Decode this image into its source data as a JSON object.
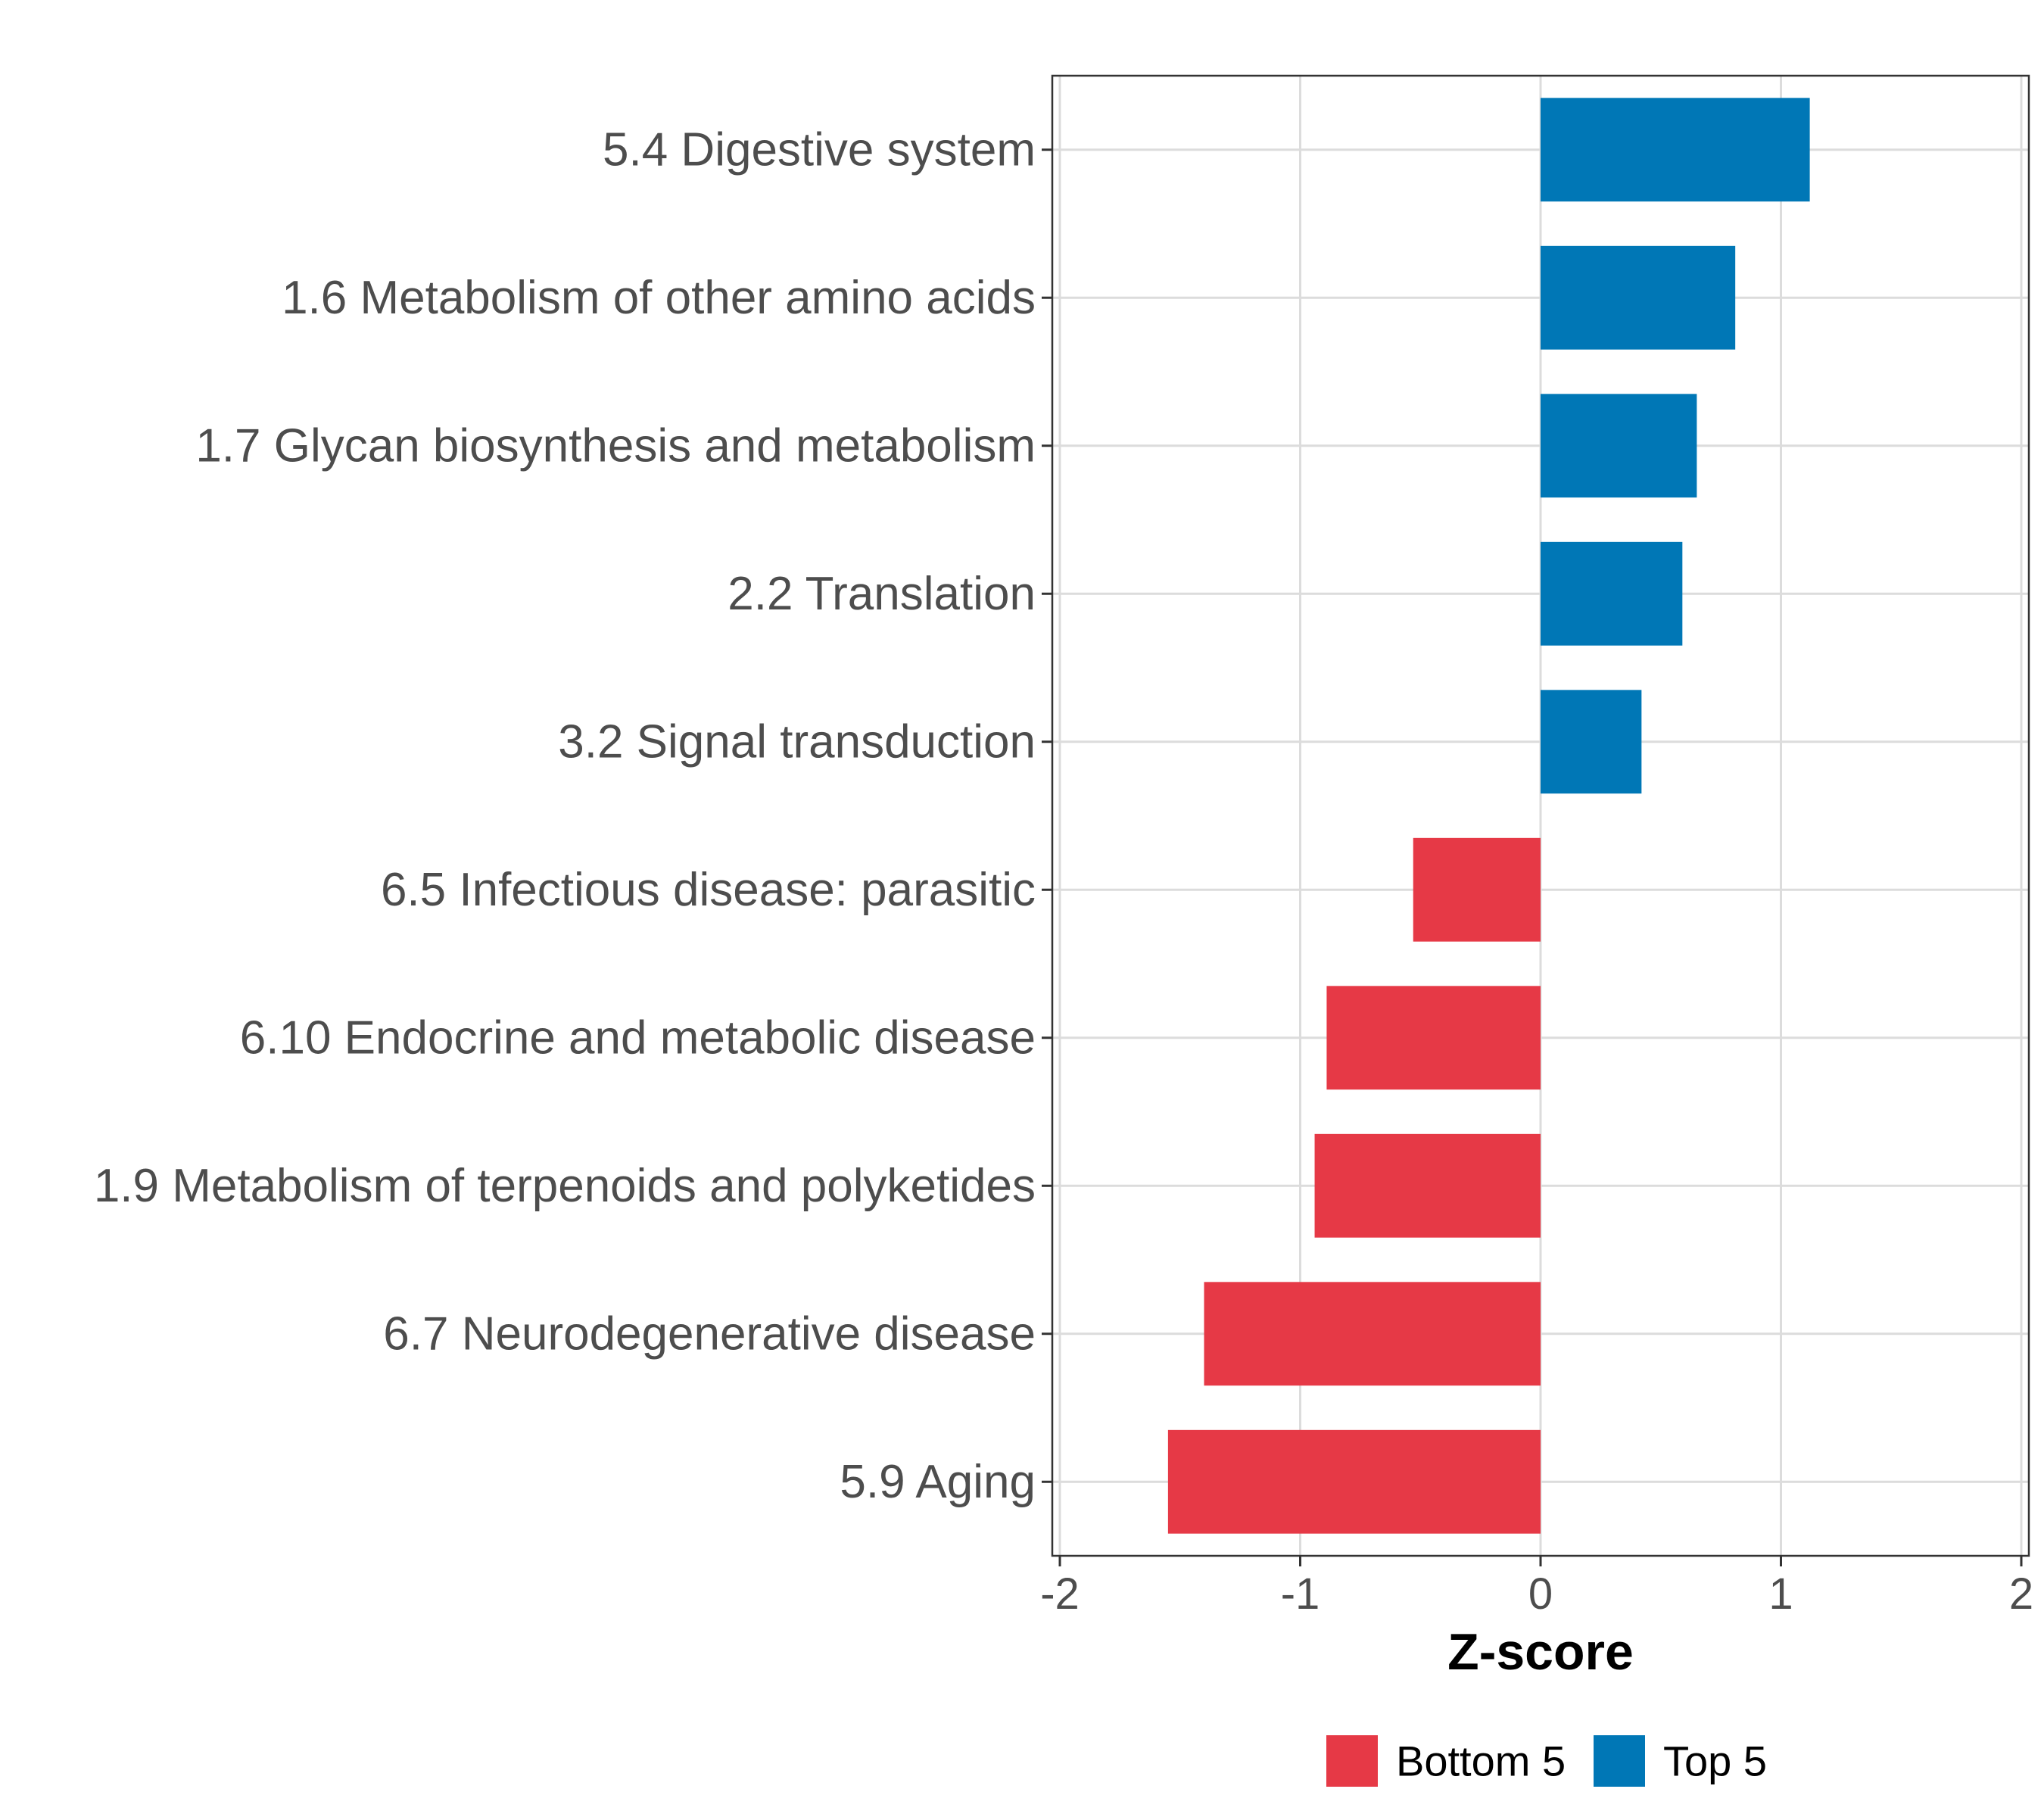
{
  "chart_data": {
    "type": "bar",
    "orientation": "horizontal",
    "categories": [
      "5.4 Digestive system",
      "1.6 Metabolism of other amino acids",
      "1.7 Glycan biosynthesis and metabolism",
      "2.2 Translation",
      "3.2 Signal transduction",
      "6.5 Infectious disease: parasitic",
      "6.10 Endocrine and metabolic disease",
      "1.9 Metabolism of terpenoids and polyketides",
      "6.7 Neurodegenerative disease",
      "5.9 Aging"
    ],
    "values": [
      1.12,
      0.81,
      0.65,
      0.59,
      0.42,
      -0.53,
      -0.89,
      -0.94,
      -1.4,
      -1.55
    ],
    "groups": [
      "Top 5",
      "Top 5",
      "Top 5",
      "Top 5",
      "Top 5",
      "Bottom 5",
      "Bottom 5",
      "Bottom 5",
      "Bottom 5",
      "Bottom 5"
    ],
    "xlabel": "Z-score",
    "ylabel": "",
    "xlim": [
      -2,
      2
    ],
    "xticks": [
      -2,
      -1,
      0,
      1,
      2
    ],
    "xtick_labels": [
      "-2",
      "-1",
      "0",
      "1",
      "2"
    ],
    "grid": true,
    "legend": {
      "position": "bottom",
      "entries": [
        {
          "label": "Bottom 5",
          "color": "#E63946"
        },
        {
          "label": "Top 5",
          "color": "#0077B6"
        }
      ]
    }
  }
}
